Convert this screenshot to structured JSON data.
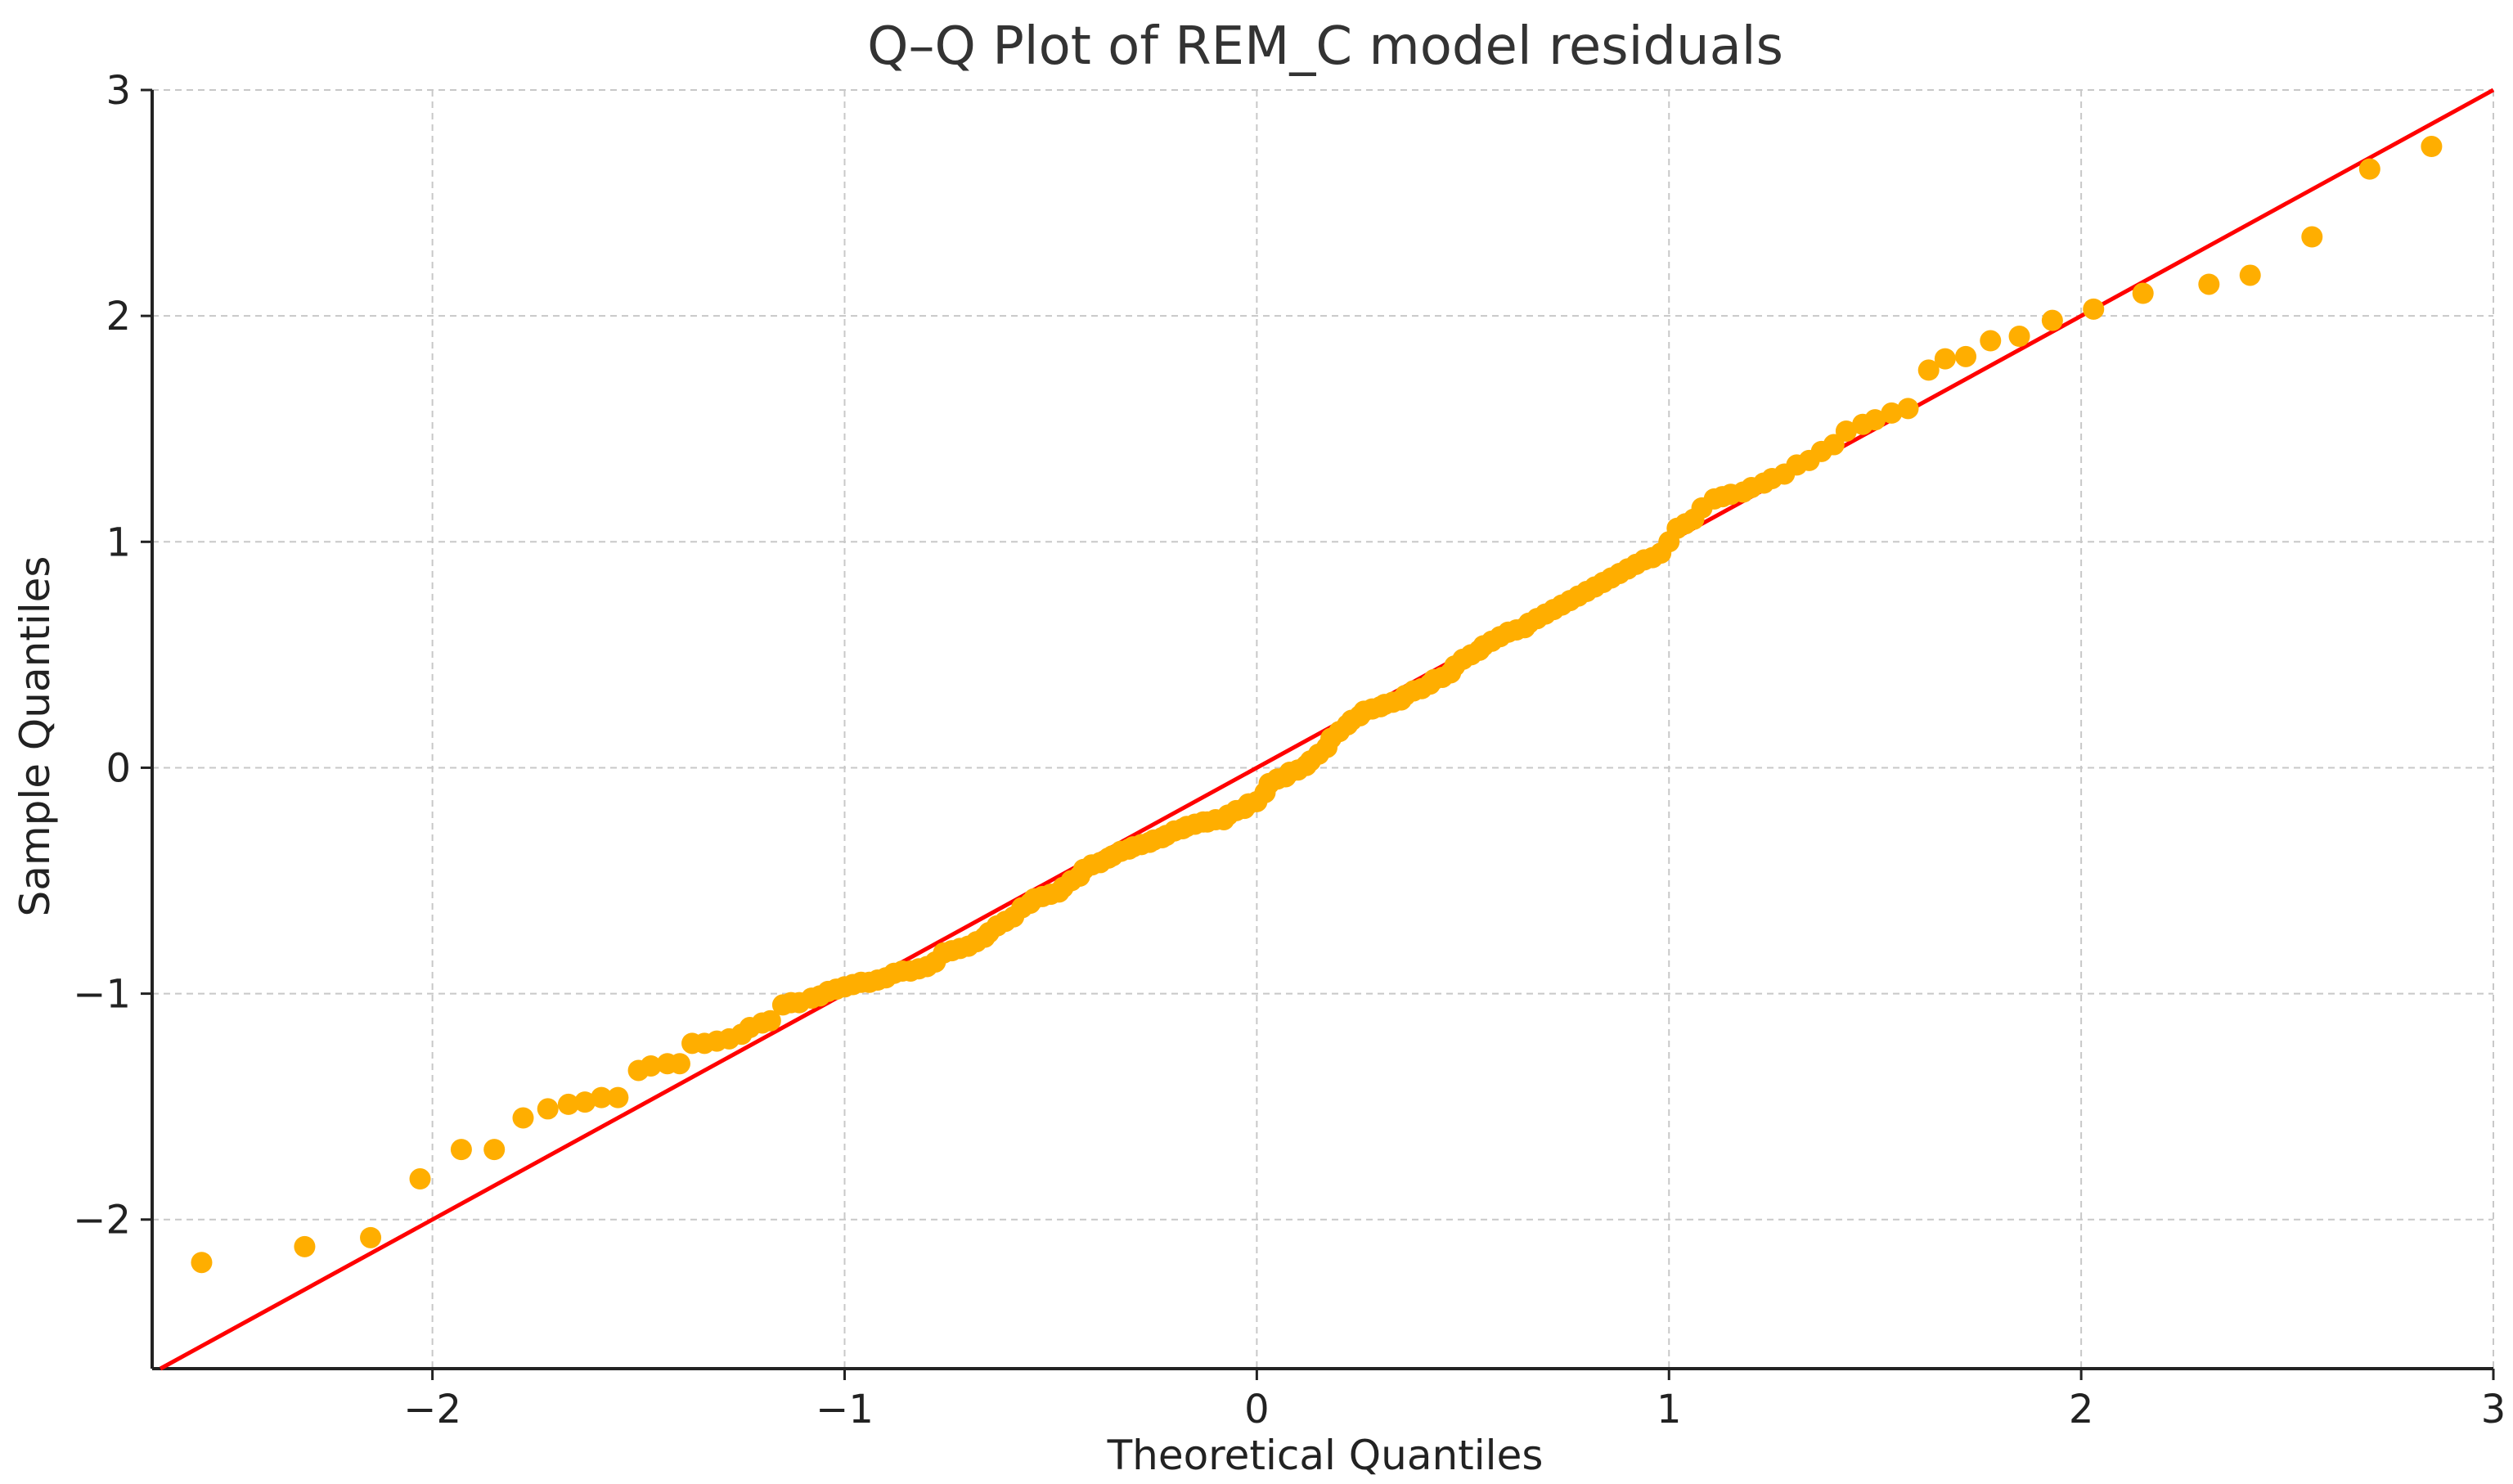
{
  "chart_data": {
    "type": "scatter",
    "title": "Q–Q Plot of REM_C model residuals",
    "xlabel": "Theoretical Quantiles",
    "ylabel": "Sample Quantiles",
    "xlim": [
      -2.68,
      3.0
    ],
    "ylim": [
      -2.66,
      3.0
    ],
    "x_ticks": [
      -2,
      -1,
      0,
      1,
      2,
      3
    ],
    "y_ticks": [
      -2,
      -1,
      0,
      1,
      2,
      3
    ],
    "x_tick_labels": [
      "−2",
      "−1",
      "0",
      "1",
      "2",
      "3"
    ],
    "y_tick_labels": [
      "−2",
      "−1",
      "0",
      "1",
      "2",
      "3"
    ],
    "grid": true,
    "point_color": "#FFAE00",
    "line_color": "#FF0000",
    "reference_line": {
      "slope": 1,
      "intercept": 0
    },
    "points": [
      [
        -2.56,
        -2.19
      ],
      [
        -2.31,
        -2.12
      ],
      [
        -2.15,
        -2.08
      ],
      [
        -2.03,
        -1.82
      ],
      [
        -1.93,
        -1.69
      ],
      [
        -1.85,
        -1.69
      ],
      [
        -1.78,
        -1.55
      ],
      [
        -1.72,
        -1.51
      ],
      [
        -1.67,
        -1.49
      ],
      [
        -1.63,
        -1.48
      ],
      [
        -1.59,
        -1.46
      ],
      [
        -1.55,
        -1.46
      ],
      [
        -1.5,
        -1.34
      ],
      [
        -1.47,
        -1.32
      ],
      [
        -1.43,
        -1.31
      ],
      [
        -1.4,
        -1.31
      ],
      [
        -1.37,
        -1.22
      ],
      [
        -1.34,
        -1.22
      ],
      [
        -1.31,
        -1.21
      ],
      [
        -1.28,
        -1.2
      ],
      [
        -1.25,
        -1.18
      ],
      [
        -1.23,
        -1.15
      ],
      [
        -1.2,
        -1.13
      ],
      [
        -1.18,
        -1.12
      ],
      [
        -1.15,
        -1.05
      ],
      [
        -1.13,
        -1.04
      ],
      [
        -1.11,
        -1.04
      ],
      [
        -1.08,
        -1.02
      ],
      [
        -1.06,
        -1.01
      ],
      [
        -1.04,
        -0.99
      ],
      [
        -1.02,
        -0.98
      ],
      [
        -1.0,
        -0.97
      ],
      [
        -0.98,
        -0.96
      ],
      [
        -0.96,
        -0.95
      ],
      [
        -0.94,
        -0.95
      ],
      [
        -0.92,
        -0.94
      ],
      [
        -0.9,
        -0.93
      ],
      [
        -0.88,
        -0.91
      ],
      [
        -0.86,
        -0.9
      ],
      [
        -0.84,
        -0.9
      ],
      [
        -0.82,
        -0.89
      ],
      [
        -0.8,
        -0.88
      ],
      [
        -0.78,
        -0.86
      ],
      [
        -0.76,
        -0.82
      ],
      [
        -0.74,
        -0.81
      ],
      [
        -0.72,
        -0.8
      ],
      [
        -0.7,
        -0.79
      ],
      [
        -0.68,
        -0.77
      ],
      [
        -0.66,
        -0.75
      ],
      [
        -0.65,
        -0.73
      ],
      [
        -0.63,
        -0.7
      ],
      [
        -0.61,
        -0.68
      ],
      [
        -0.59,
        -0.66
      ],
      [
        -0.57,
        -0.62
      ],
      [
        -0.55,
        -0.6
      ],
      [
        -0.54,
        -0.58
      ],
      [
        -0.52,
        -0.57
      ],
      [
        -0.5,
        -0.56
      ],
      [
        -0.48,
        -0.55
      ],
      [
        -0.47,
        -0.53
      ],
      [
        -0.45,
        -0.5
      ],
      [
        -0.43,
        -0.48
      ],
      [
        -0.42,
        -0.45
      ],
      [
        -0.4,
        -0.43
      ],
      [
        -0.38,
        -0.42
      ],
      [
        -0.36,
        -0.4
      ],
      [
        -0.35,
        -0.39
      ],
      [
        -0.33,
        -0.37
      ],
      [
        -0.31,
        -0.36
      ],
      [
        -0.3,
        -0.35
      ],
      [
        -0.28,
        -0.34
      ],
      [
        -0.26,
        -0.33
      ],
      [
        -0.25,
        -0.32
      ],
      [
        -0.23,
        -0.31
      ],
      [
        -0.22,
        -0.3
      ],
      [
        -0.2,
        -0.28
      ],
      [
        -0.18,
        -0.27
      ],
      [
        -0.17,
        -0.26
      ],
      [
        -0.15,
        -0.25
      ],
      [
        -0.13,
        -0.24
      ],
      [
        -0.12,
        -0.24
      ],
      [
        -0.1,
        -0.23
      ],
      [
        -0.08,
        -0.23
      ],
      [
        -0.07,
        -0.21
      ],
      [
        -0.05,
        -0.19
      ],
      [
        -0.03,
        -0.18
      ],
      [
        -0.02,
        -0.16
      ],
      [
        0.0,
        -0.15
      ],
      [
        0.02,
        -0.11
      ],
      [
        0.03,
        -0.07
      ],
      [
        0.05,
        -0.05
      ],
      [
        0.07,
        -0.04
      ],
      [
        0.08,
        -0.02
      ],
      [
        0.1,
        -0.01
      ],
      [
        0.12,
        0.01
      ],
      [
        0.13,
        0.03
      ],
      [
        0.15,
        0.06
      ],
      [
        0.17,
        0.09
      ],
      [
        0.18,
        0.13
      ],
      [
        0.2,
        0.16
      ],
      [
        0.22,
        0.19
      ],
      [
        0.23,
        0.21
      ],
      [
        0.25,
        0.23
      ],
      [
        0.26,
        0.25
      ],
      [
        0.28,
        0.26
      ],
      [
        0.3,
        0.27
      ],
      [
        0.31,
        0.28
      ],
      [
        0.33,
        0.29
      ],
      [
        0.35,
        0.3
      ],
      [
        0.36,
        0.32
      ],
      [
        0.38,
        0.34
      ],
      [
        0.4,
        0.35
      ],
      [
        0.42,
        0.37
      ],
      [
        0.43,
        0.39
      ],
      [
        0.45,
        0.4
      ],
      [
        0.47,
        0.42
      ],
      [
        0.48,
        0.45
      ],
      [
        0.5,
        0.48
      ],
      [
        0.52,
        0.5
      ],
      [
        0.54,
        0.52
      ],
      [
        0.55,
        0.54
      ],
      [
        0.57,
        0.56
      ],
      [
        0.59,
        0.58
      ],
      [
        0.61,
        0.6
      ],
      [
        0.63,
        0.61
      ],
      [
        0.65,
        0.62
      ],
      [
        0.66,
        0.64
      ],
      [
        0.68,
        0.66
      ],
      [
        0.7,
        0.68
      ],
      [
        0.72,
        0.7
      ],
      [
        0.74,
        0.72
      ],
      [
        0.76,
        0.74
      ],
      [
        0.78,
        0.76
      ],
      [
        0.8,
        0.78
      ],
      [
        0.82,
        0.8
      ],
      [
        0.84,
        0.82
      ],
      [
        0.86,
        0.84
      ],
      [
        0.88,
        0.86
      ],
      [
        0.9,
        0.88
      ],
      [
        0.92,
        0.9
      ],
      [
        0.94,
        0.92
      ],
      [
        0.96,
        0.93
      ],
      [
        0.98,
        0.95
      ],
      [
        1.0,
        1.0
      ],
      [
        1.02,
        1.06
      ],
      [
        1.04,
        1.08
      ],
      [
        1.06,
        1.1
      ],
      [
        1.08,
        1.15
      ],
      [
        1.11,
        1.19
      ],
      [
        1.13,
        1.2
      ],
      [
        1.15,
        1.21
      ],
      [
        1.18,
        1.22
      ],
      [
        1.2,
        1.24
      ],
      [
        1.23,
        1.26
      ],
      [
        1.25,
        1.28
      ],
      [
        1.28,
        1.3
      ],
      [
        1.31,
        1.34
      ],
      [
        1.34,
        1.36
      ],
      [
        1.37,
        1.4
      ],
      [
        1.4,
        1.43
      ],
      [
        1.43,
        1.49
      ],
      [
        1.47,
        1.52
      ],
      [
        1.5,
        1.54
      ],
      [
        1.54,
        1.57
      ],
      [
        1.58,
        1.59
      ],
      [
        1.63,
        1.76
      ],
      [
        1.67,
        1.81
      ],
      [
        1.72,
        1.82
      ],
      [
        1.78,
        1.89
      ],
      [
        1.85,
        1.91
      ],
      [
        1.93,
        1.98
      ],
      [
        2.03,
        2.03
      ],
      [
        2.15,
        2.1
      ],
      [
        2.31,
        2.14
      ],
      [
        2.41,
        2.18
      ],
      [
        2.56,
        2.35
      ],
      [
        2.7,
        2.65
      ],
      [
        2.85,
        2.75
      ]
    ]
  }
}
